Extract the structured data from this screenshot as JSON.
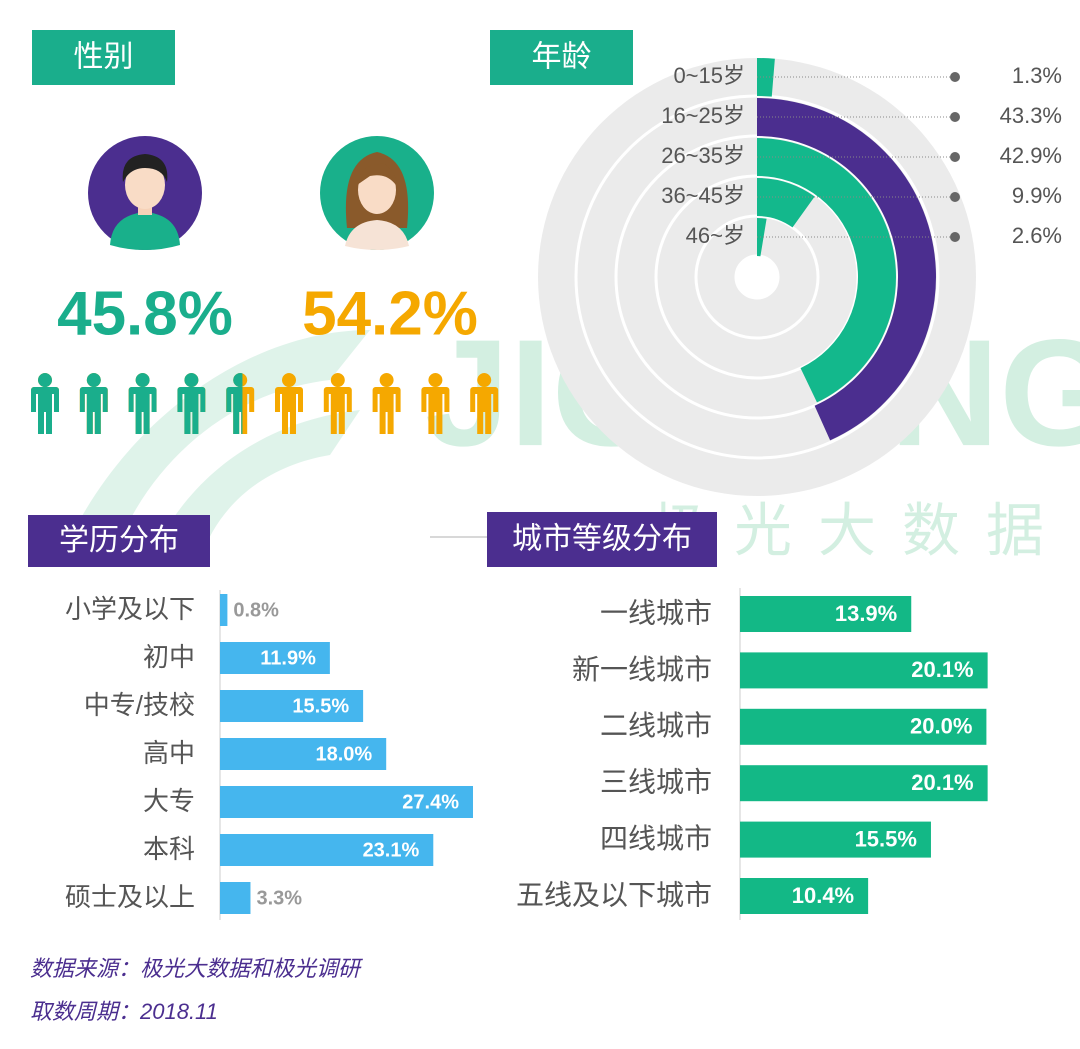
{
  "watermark": {
    "text": "JIGUANG",
    "subtext": "极光大数据"
  },
  "chart_data": [
    {
      "type": "pictograph",
      "title": "性别",
      "values": [
        45.8,
        54.2
      ],
      "value_labels": [
        "45.8%",
        "54.2%"
      ],
      "colors": [
        "#1aae8c",
        "#f5a800"
      ]
    },
    {
      "type": "radial_bar",
      "title": "年龄",
      "categories": [
        "0~15岁",
        "16~25岁",
        "26~35岁",
        "36~45岁",
        "46~岁"
      ],
      "values": [
        1.3,
        43.3,
        42.9,
        9.9,
        2.6
      ],
      "value_labels": [
        "1.3%",
        "43.3%",
        "42.9%",
        "9.9%",
        "2.6%"
      ],
      "colors": [
        "#13b88c",
        "#4b2e8f",
        "#13b88c",
        "#13b88c",
        "#13b88c"
      ],
      "ylim": [
        0,
        100
      ]
    },
    {
      "type": "bar",
      "orientation": "horizontal",
      "title": "学历分布",
      "categories": [
        "小学及以下",
        "初中",
        "中专/技校",
        "高中",
        "大专",
        "本科",
        "硕士及以上"
      ],
      "values": [
        0.8,
        11.9,
        15.5,
        18.0,
        27.4,
        23.1,
        3.3
      ],
      "value_labels": [
        "0.8%",
        "11.9%",
        "15.5%",
        "18.0%",
        "27.4%",
        "23.1%",
        "3.3%"
      ],
      "color": "#45b6ee",
      "xlim": [
        0,
        30
      ]
    },
    {
      "type": "bar",
      "orientation": "horizontal",
      "title": "城市等级分布",
      "categories": [
        "一线城市",
        "新一线城市",
        "二线城市",
        "三线城市",
        "四线城市",
        "五线及以下城市"
      ],
      "values": [
        13.9,
        20.1,
        20.0,
        20.1,
        15.5,
        10.4
      ],
      "value_labels": [
        "13.9%",
        "20.1%",
        "20.0%",
        "20.1%",
        "15.5%",
        "10.4%"
      ],
      "color": "#13b886",
      "xlim": [
        0,
        25
      ]
    }
  ],
  "footer": [
    "数据来源：极光大数据和极光调研",
    "取数周期：2018.11"
  ]
}
